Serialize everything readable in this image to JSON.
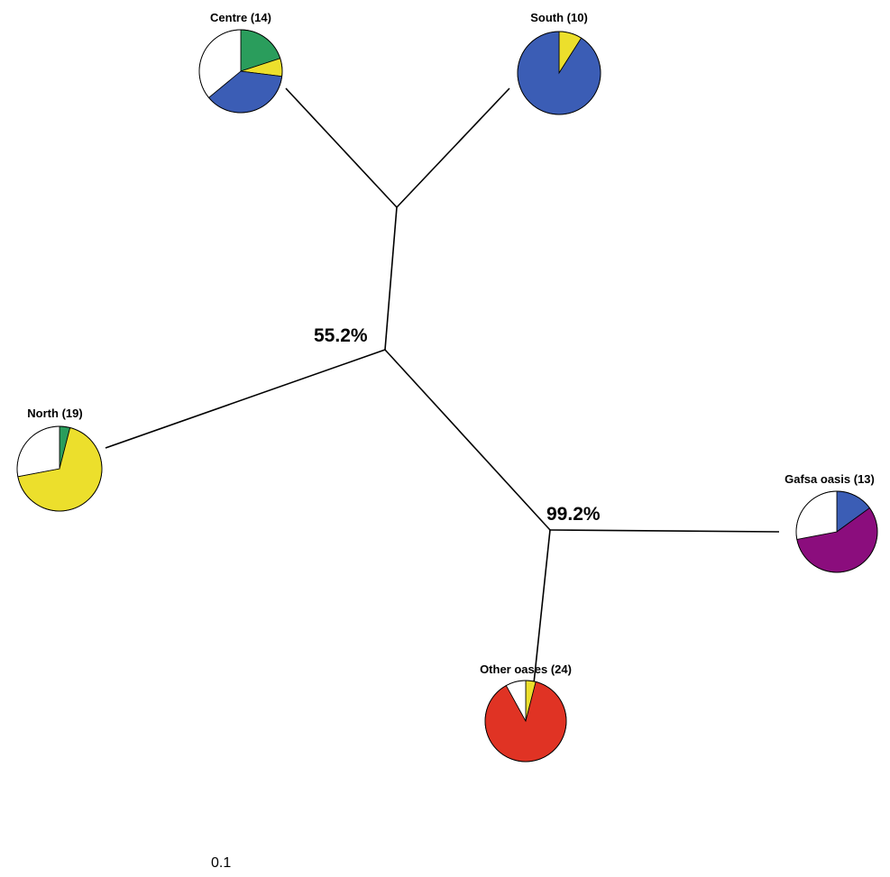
{
  "chart_data": {
    "type": "diagram",
    "colors": {
      "green": "#2a9d5c",
      "yellow": "#ecdf2c",
      "blue": "#3b5db5",
      "white": "#ffffff",
      "purple": "#8b0d7d",
      "red": "#e03324"
    },
    "support_values": [
      "55.2%",
      "99.2%"
    ],
    "scale_label": "0.1",
    "groups": [
      {
        "id": "centre",
        "label": "Centre (14)",
        "slices": [
          {
            "color": "green",
            "value": 0.2
          },
          {
            "color": "yellow",
            "value": 0.07
          },
          {
            "color": "blue",
            "value": 0.37
          },
          {
            "color": "white",
            "value": 0.36
          }
        ]
      },
      {
        "id": "south",
        "label": "South (10)",
        "slices": [
          {
            "color": "yellow",
            "value": 0.09
          },
          {
            "color": "blue",
            "value": 0.91
          }
        ]
      },
      {
        "id": "north",
        "label": "North (19)",
        "slices": [
          {
            "color": "green",
            "value": 0.04
          },
          {
            "color": "yellow",
            "value": 0.68
          },
          {
            "color": "white",
            "value": 0.28
          }
        ]
      },
      {
        "id": "gafsa",
        "label": "Gafsa oasis (13)",
        "slices": [
          {
            "color": "blue",
            "value": 0.15
          },
          {
            "color": "purple",
            "value": 0.57
          },
          {
            "color": "white",
            "value": 0.28
          }
        ]
      },
      {
        "id": "other",
        "label": "Other oases (24)",
        "slices": [
          {
            "color": "yellow",
            "value": 0.04
          },
          {
            "color": "red",
            "value": 0.88
          },
          {
            "color": "white",
            "value": 0.08
          }
        ]
      }
    ]
  }
}
